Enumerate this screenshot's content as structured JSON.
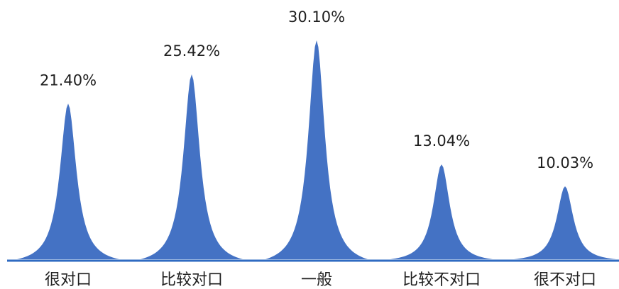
{
  "chart_data": {
    "type": "area",
    "title": "",
    "xlabel": "",
    "ylabel": "",
    "categories": [
      "很对口",
      "比较对口",
      "一般",
      "比较不对口",
      "很不对口"
    ],
    "values": [
      21.4,
      25.42,
      30.1,
      13.04,
      10.03
    ],
    "data_labels": [
      "21.40%",
      "25.42%",
      "30.10%",
      "13.04%",
      "10.03%"
    ],
    "ylim": [
      0,
      30.1
    ],
    "grid": false,
    "legend": "none",
    "colors": {
      "fill": "#4472C4",
      "baseline": "#2F6BC2",
      "text": "#1f1f1f"
    }
  }
}
